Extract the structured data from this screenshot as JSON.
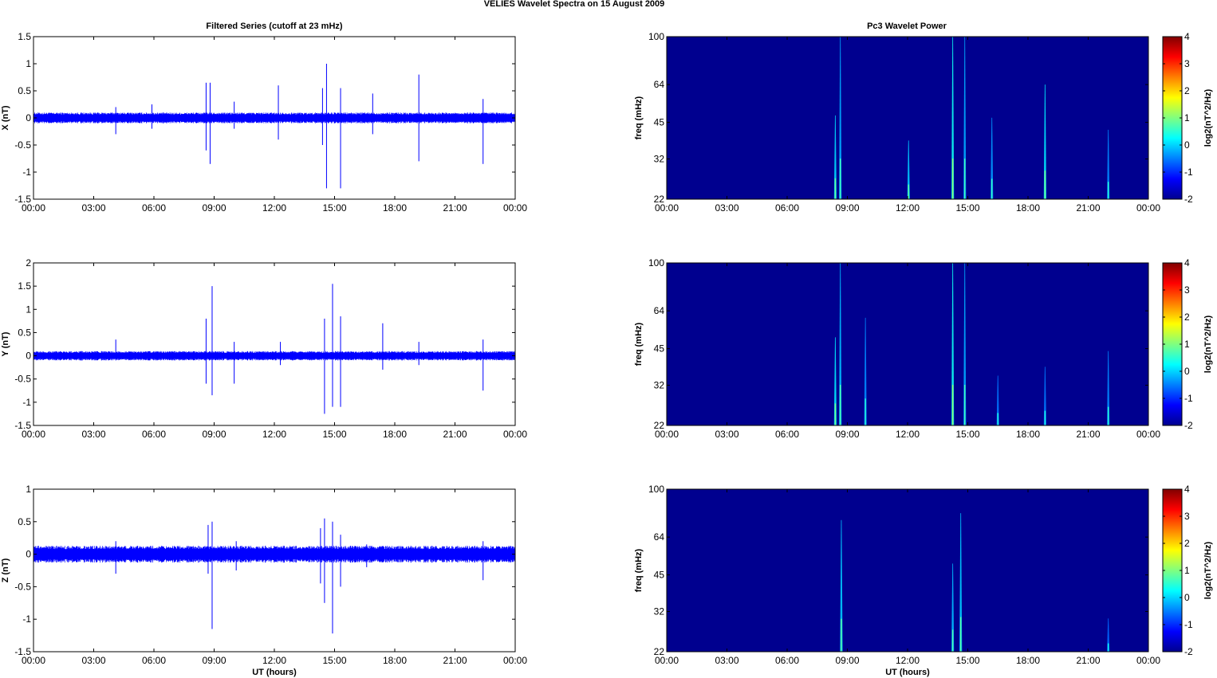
{
  "figure": {
    "suptitle": "VELIES Wavelet Spectra on 15 August    2009",
    "left_title": "Filtered Series (cutoff at 23 mHz)",
    "right_title": "Pc3 Wavelet Power"
  },
  "chart_data": [
    {
      "type": "line",
      "panel": "X",
      "xlabel": "",
      "ylabel": "X (nT)",
      "xlim": [
        0,
        24
      ],
      "ylim": [
        -1.5,
        1.5
      ],
      "xticks": [
        "00:00",
        "03:00",
        "06:00",
        "09:00",
        "12:00",
        "15:00",
        "18:00",
        "21:00",
        "00:00"
      ],
      "yticks": [
        "-1.5",
        "-1",
        "-0.5",
        "0",
        "0.5",
        "1",
        "1.5"
      ],
      "color": "#0000ff",
      "noise_amplitude": 0.1,
      "spikes": [
        {
          "t": 4.1,
          "min": -0.3,
          "max": 0.2
        },
        {
          "t": 5.9,
          "min": -0.2,
          "max": 0.25
        },
        {
          "t": 8.6,
          "min": -0.6,
          "max": 0.65
        },
        {
          "t": 8.8,
          "min": -0.85,
          "max": 0.65
        },
        {
          "t": 10.0,
          "min": -0.2,
          "max": 0.3
        },
        {
          "t": 12.2,
          "min": -0.4,
          "max": 0.6
        },
        {
          "t": 14.4,
          "min": -0.5,
          "max": 0.55
        },
        {
          "t": 14.6,
          "min": -1.3,
          "max": 1.0
        },
        {
          "t": 15.3,
          "min": -1.3,
          "max": 0.55
        },
        {
          "t": 16.9,
          "min": -0.3,
          "max": 0.45
        },
        {
          "t": 19.2,
          "min": -0.8,
          "max": 0.8
        },
        {
          "t": 22.4,
          "min": -0.85,
          "max": 0.35
        }
      ]
    },
    {
      "type": "line",
      "panel": "Y",
      "xlabel": "",
      "ylabel": "Y (nT)",
      "xlim": [
        0,
        24
      ],
      "ylim": [
        -1.5,
        2
      ],
      "xticks": [
        "00:00",
        "03:00",
        "06:00",
        "09:00",
        "12:00",
        "15:00",
        "18:00",
        "21:00",
        "00:00"
      ],
      "yticks": [
        "-1.5",
        "-1",
        "-0.5",
        "0",
        "0.5",
        "1",
        "1.5",
        "2"
      ],
      "color": "#0000ff",
      "noise_amplitude": 0.1,
      "spikes": [
        {
          "t": 4.1,
          "min": -0.1,
          "max": 0.35
        },
        {
          "t": 8.6,
          "min": -0.6,
          "max": 0.8
        },
        {
          "t": 8.9,
          "min": -0.85,
          "max": 1.5
        },
        {
          "t": 10.0,
          "min": -0.6,
          "max": 0.3
        },
        {
          "t": 12.3,
          "min": -0.2,
          "max": 0.3
        },
        {
          "t": 14.5,
          "min": -1.25,
          "max": 0.8
        },
        {
          "t": 14.9,
          "min": -1.1,
          "max": 1.55
        },
        {
          "t": 15.3,
          "min": -1.1,
          "max": 0.85
        },
        {
          "t": 17.4,
          "min": -0.3,
          "max": 0.7
        },
        {
          "t": 19.2,
          "min": -0.2,
          "max": 0.3
        },
        {
          "t": 22.4,
          "min": -0.75,
          "max": 0.35
        }
      ]
    },
    {
      "type": "line",
      "panel": "Z",
      "xlabel": "UT (hours)",
      "ylabel": "Z (nT)",
      "xlim": [
        0,
        24
      ],
      "ylim": [
        -1.5,
        1
      ],
      "xticks": [
        "00:00",
        "03:00",
        "06:00",
        "09:00",
        "12:00",
        "15:00",
        "18:00",
        "21:00",
        "00:00"
      ],
      "yticks": [
        "-1.5",
        "-1",
        "-0.5",
        "0",
        "0.5",
        "1"
      ],
      "color": "#0000ff",
      "noise_amplitude": 0.13,
      "spikes": [
        {
          "t": 4.1,
          "min": -0.3,
          "max": 0.2
        },
        {
          "t": 8.7,
          "min": -0.3,
          "max": 0.45
        },
        {
          "t": 8.9,
          "min": -1.15,
          "max": 0.5
        },
        {
          "t": 10.1,
          "min": -0.25,
          "max": 0.2
        },
        {
          "t": 14.3,
          "min": -0.45,
          "max": 0.4
        },
        {
          "t": 14.5,
          "min": -0.75,
          "max": 0.55
        },
        {
          "t": 14.9,
          "min": -1.22,
          "max": 0.5
        },
        {
          "t": 15.3,
          "min": -0.5,
          "max": 0.3
        },
        {
          "t": 16.6,
          "min": -0.2,
          "max": 0.15
        },
        {
          "t": 22.4,
          "min": -0.4,
          "max": 0.2
        }
      ]
    },
    {
      "type": "heatmap",
      "panel": "X power",
      "xlabel": "",
      "ylabel": "freq (mHz)",
      "xlim": [
        0,
        24
      ],
      "ylim": [
        22,
        100
      ],
      "yscale": "log",
      "xticks": [
        "00:00",
        "03:00",
        "06:00",
        "09:00",
        "12:00",
        "15:00",
        "18:00",
        "21:00",
        "00:00"
      ],
      "yticks": [
        "22",
        "32",
        "45",
        "64",
        "100"
      ],
      "background": "#00008f",
      "colorbar": {
        "label": "log2(nT^2/Hz)",
        "range": [
          -2,
          4
        ],
        "ticks": [
          "-2",
          "-1",
          "0",
          "1",
          "2",
          "3",
          "4"
        ]
      },
      "streaks": [
        {
          "t": 8.4,
          "top": 48,
          "level": 0.5
        },
        {
          "t": 8.65,
          "top": 100,
          "level": 0.35
        },
        {
          "t": 12.05,
          "top": 38,
          "level": 0.45
        },
        {
          "t": 14.25,
          "top": 100,
          "level": 0.65
        },
        {
          "t": 14.85,
          "top": 100,
          "level": 0.35
        },
        {
          "t": 16.2,
          "top": 47,
          "level": 0.3
        },
        {
          "t": 18.85,
          "top": 64,
          "level": 0.55
        },
        {
          "t": 22.0,
          "top": 42,
          "level": 0.25
        }
      ]
    },
    {
      "type": "heatmap",
      "panel": "Y power",
      "xlabel": "",
      "ylabel": "freq (mHz)",
      "xlim": [
        0,
        24
      ],
      "ylim": [
        22,
        100
      ],
      "yscale": "log",
      "xticks": [
        "00:00",
        "03:00",
        "06:00",
        "09:00",
        "12:00",
        "15:00",
        "18:00",
        "21:00",
        "00:00"
      ],
      "yticks": [
        "22",
        "32",
        "45",
        "64",
        "100"
      ],
      "background": "#00008f",
      "colorbar": {
        "label": "log2(nT^2/Hz)",
        "range": [
          -2,
          4
        ],
        "ticks": [
          "-2",
          "-1",
          "0",
          "1",
          "2",
          "3",
          "4"
        ]
      },
      "streaks": [
        {
          "t": 8.4,
          "top": 50,
          "level": 0.55
        },
        {
          "t": 8.65,
          "top": 100,
          "level": 0.4
        },
        {
          "t": 9.9,
          "top": 60,
          "level": 0.25
        },
        {
          "t": 14.25,
          "top": 100,
          "level": 0.65
        },
        {
          "t": 14.85,
          "top": 100,
          "level": 0.35
        },
        {
          "t": 16.5,
          "top": 35,
          "level": 0.2
        },
        {
          "t": 18.85,
          "top": 38,
          "level": 0.2
        },
        {
          "t": 22.0,
          "top": 44,
          "level": 0.25
        }
      ]
    },
    {
      "type": "heatmap",
      "panel": "Z power",
      "xlabel": "UT (hours)",
      "ylabel": "freq (mHz)",
      "xlim": [
        0,
        24
      ],
      "ylim": [
        22,
        100
      ],
      "yscale": "log",
      "xticks": [
        "00:00",
        "03:00",
        "06:00",
        "09:00",
        "12:00",
        "15:00",
        "18:00",
        "21:00",
        "00:00"
      ],
      "yticks": [
        "22",
        "32",
        "45",
        "64",
        "100"
      ],
      "background": "#00008f",
      "colorbar": {
        "label": "log2(nT^2/Hz)",
        "range": [
          -2,
          4
        ],
        "ticks": [
          "-2",
          "-1",
          "0",
          "1",
          "2",
          "3",
          "4"
        ]
      },
      "streaks": [
        {
          "t": 8.7,
          "top": 75,
          "level": 0.45
        },
        {
          "t": 14.25,
          "top": 50,
          "level": 0.4
        },
        {
          "t": 14.65,
          "top": 80,
          "level": 0.45
        },
        {
          "t": 22.0,
          "top": 30,
          "level": 0.15
        }
      ]
    }
  ]
}
